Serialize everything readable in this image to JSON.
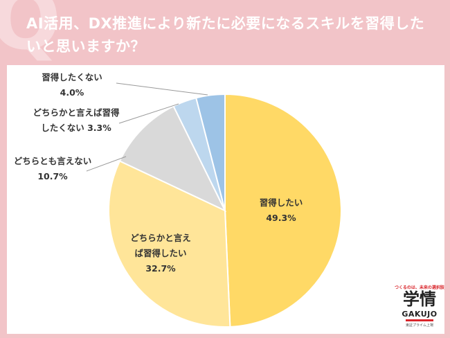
{
  "header": {
    "title": "AI活用、DX推進により新たに必要になるスキルを習得したいと思いますか？",
    "decor_mark": "Q"
  },
  "chart_data": {
    "type": "pie",
    "title": "",
    "slices": [
      {
        "label_lines": [
          "習得したい"
        ],
        "value": 49.3,
        "value_text": "49.3%",
        "color": "#ffd966"
      },
      {
        "label_lines": [
          "どちらかと言え",
          "ば習得したい"
        ],
        "value": 32.7,
        "value_text": "32.7%",
        "color": "#ffe599"
      },
      {
        "label_lines": [
          "どちらとも言えない"
        ],
        "value": 10.7,
        "value_text": "10.7%",
        "color": "#d9d9d9"
      },
      {
        "label_lines": [
          "どちらかと言えば習得",
          "したくない"
        ],
        "value": 3.3,
        "value_text": "3.3%",
        "color": "#bdd7ee"
      },
      {
        "label_lines": [
          "習得したくない"
        ],
        "value": 4.0,
        "value_text": "4.0%",
        "color": "#9dc3e6"
      }
    ]
  },
  "logo": {
    "tagline": "つくるのは、未来の選択肢",
    "kanji": "学情",
    "english": "GAKUJO",
    "sub": "東証プライム上場"
  }
}
